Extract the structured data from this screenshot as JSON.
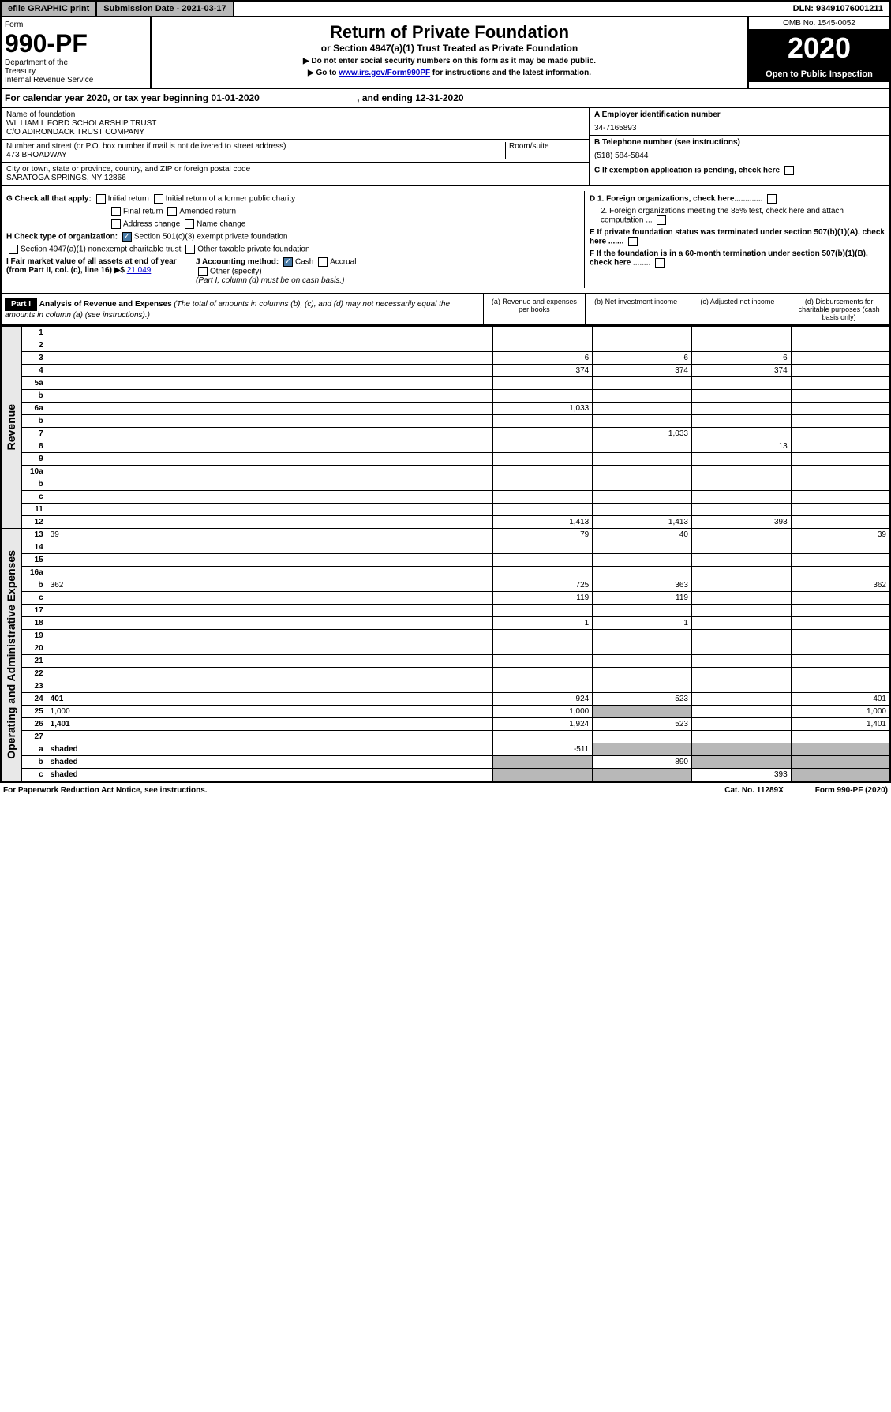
{
  "topbar": {
    "efile": "efile GRAPHIC print",
    "subdate_label": "Submission Date - ",
    "subdate": "2021-03-17",
    "dln_label": "DLN: ",
    "dln": "93491076001211"
  },
  "header": {
    "form_label": "Form",
    "form_num": "990-PF",
    "dept1": "Department of the",
    "dept2": "Treasury",
    "dept3": "Internal Revenue Service",
    "title": "Return of Private Foundation",
    "subtitle": "or Section 4947(a)(1) Trust Treated as Private Foundation",
    "note1": "▶ Do not enter social security numbers on this form as it may be made public.",
    "note2_pre": "▶ Go to ",
    "note2_link": "www.irs.gov/Form990PF",
    "note2_post": " for instructions and the latest information.",
    "omb": "OMB No. 1545-0052",
    "year": "2020",
    "open": "Open to Public Inspection"
  },
  "calyear": {
    "pre": "For calendar year 2020, or tax year beginning ",
    "begin": "01-01-2020",
    "mid": " , and ending ",
    "end": "12-31-2020"
  },
  "info": {
    "name_lbl": "Name of foundation",
    "name1": "WILLIAM L FORD SCHOLARSHIP TRUST",
    "name2": "C/O ADIRONDACK TRUST COMPANY",
    "addr_lbl": "Number and street (or P.O. box number if mail is not delivered to street address)",
    "addr": "473 BROADWAY",
    "room_lbl": "Room/suite",
    "city_lbl": "City or town, state or province, country, and ZIP or foreign postal code",
    "city": "SARATOGA SPRINGS, NY  12866",
    "a_lbl": "A Employer identification number",
    "a_val": "34-7165893",
    "b_lbl": "B Telephone number (see instructions)",
    "b_val": "(518) 584-5844",
    "c_lbl": "C If exemption application is pending, check here",
    "d1_lbl": "D 1. Foreign organizations, check here.............",
    "d2_lbl": "2. Foreign organizations meeting the 85% test, check here and attach computation ...",
    "e_lbl": "E  If private foundation status was terminated under section 507(b)(1)(A), check here .......",
    "f_lbl": "F  If the foundation is in a 60-month termination under section 507(b)(1)(B), check here ........"
  },
  "checks": {
    "g_lbl": "G Check all that apply:",
    "initial": "Initial return",
    "initial_former": "Initial return of a former public charity",
    "final": "Final return",
    "amended": "Amended return",
    "addr_change": "Address change",
    "name_change": "Name change",
    "h_lbl": "H Check type of organization:",
    "h1": "Section 501(c)(3) exempt private foundation",
    "h2": "Section 4947(a)(1) nonexempt charitable trust",
    "h3": "Other taxable private foundation",
    "i_lbl": "I Fair market value of all assets at end of year (from Part II, col. (c), line 16) ▶$ ",
    "i_val": "21,049",
    "j_lbl": "J Accounting method:",
    "cash": "Cash",
    "accrual": "Accrual",
    "other": "Other (specify)",
    "j_note": "(Part I, column (d) must be on cash basis.)"
  },
  "part1": {
    "label": "Part I",
    "title": "Analysis of Revenue and Expenses",
    "note": " (The total of amounts in columns (b), (c), and (d) may not necessarily equal the amounts in column (a) (see instructions).)",
    "col_a": "(a)   Revenue and expenses per books",
    "col_b": "(b)  Net investment income",
    "col_c": "(c)  Adjusted net income",
    "col_d": "(d)  Disbursements for charitable purposes (cash basis only)"
  },
  "sidelabels": {
    "revenue": "Revenue",
    "expenses": "Operating and Administrative Expenses"
  },
  "rows": [
    {
      "n": "1",
      "d": "",
      "a": "",
      "b": "",
      "c": ""
    },
    {
      "n": "2",
      "d": "",
      "a": "",
      "b": "",
      "c": ""
    },
    {
      "n": "3",
      "d": "",
      "a": "6",
      "b": "6",
      "c": "6"
    },
    {
      "n": "4",
      "d": "",
      "a": "374",
      "b": "374",
      "c": "374"
    },
    {
      "n": "5a",
      "d": "",
      "a": "",
      "b": "",
      "c": ""
    },
    {
      "n": "b",
      "d": "",
      "a": "",
      "b": "",
      "c": ""
    },
    {
      "n": "6a",
      "d": "",
      "a": "1,033",
      "b": "",
      "c": ""
    },
    {
      "n": "b",
      "d": "",
      "a": "",
      "b": "",
      "c": ""
    },
    {
      "n": "7",
      "d": "",
      "a": "",
      "b": "1,033",
      "c": ""
    },
    {
      "n": "8",
      "d": "",
      "a": "",
      "b": "",
      "c": "13"
    },
    {
      "n": "9",
      "d": "",
      "a": "",
      "b": "",
      "c": ""
    },
    {
      "n": "10a",
      "d": "",
      "a": "",
      "b": "",
      "c": ""
    },
    {
      "n": "b",
      "d": "",
      "a": "",
      "b": "",
      "c": ""
    },
    {
      "n": "c",
      "d": "",
      "a": "",
      "b": "",
      "c": ""
    },
    {
      "n": "11",
      "d": "",
      "a": "",
      "b": "",
      "c": ""
    },
    {
      "n": "12",
      "d": "",
      "a": "1,413",
      "b": "1,413",
      "c": "393",
      "bold": true
    },
    {
      "n": "13",
      "d": "39",
      "a": "79",
      "b": "40",
      "c": ""
    },
    {
      "n": "14",
      "d": "",
      "a": "",
      "b": "",
      "c": ""
    },
    {
      "n": "15",
      "d": "",
      "a": "",
      "b": "",
      "c": ""
    },
    {
      "n": "16a",
      "d": "",
      "a": "",
      "b": "",
      "c": ""
    },
    {
      "n": "b",
      "d": "362",
      "a": "725",
      "b": "363",
      "c": ""
    },
    {
      "n": "c",
      "d": "",
      "a": "119",
      "b": "119",
      "c": ""
    },
    {
      "n": "17",
      "d": "",
      "a": "",
      "b": "",
      "c": ""
    },
    {
      "n": "18",
      "d": "",
      "a": "1",
      "b": "1",
      "c": ""
    },
    {
      "n": "19",
      "d": "",
      "a": "",
      "b": "",
      "c": ""
    },
    {
      "n": "20",
      "d": "",
      "a": "",
      "b": "",
      "c": ""
    },
    {
      "n": "21",
      "d": "",
      "a": "",
      "b": "",
      "c": ""
    },
    {
      "n": "22",
      "d": "",
      "a": "",
      "b": "",
      "c": ""
    },
    {
      "n": "23",
      "d": "",
      "a": "",
      "b": "",
      "c": ""
    },
    {
      "n": "24",
      "d": "401",
      "a": "924",
      "b": "523",
      "c": "",
      "bold": true
    },
    {
      "n": "25",
      "d": "1,000",
      "a": "1,000",
      "b": "shaded",
      "c": ""
    },
    {
      "n": "26",
      "d": "1,401",
      "a": "1,924",
      "b": "523",
      "c": "",
      "bold": true
    },
    {
      "n": "27",
      "d": "",
      "a": "",
      "b": "",
      "c": ""
    },
    {
      "n": "a",
      "d": "shaded",
      "a": "-511",
      "b": "shaded",
      "c": "shaded",
      "bold": true
    },
    {
      "n": "b",
      "d": "shaded",
      "a": "shaded",
      "b": "890",
      "c": "shaded",
      "bold": true
    },
    {
      "n": "c",
      "d": "shaded",
      "a": "shaded",
      "b": "shaded",
      "c": "393",
      "bold": true
    }
  ],
  "footer": {
    "left": "For Paperwork Reduction Act Notice, see instructions.",
    "mid": "Cat. No. 11289X",
    "right": "Form 990-PF (2020)"
  }
}
